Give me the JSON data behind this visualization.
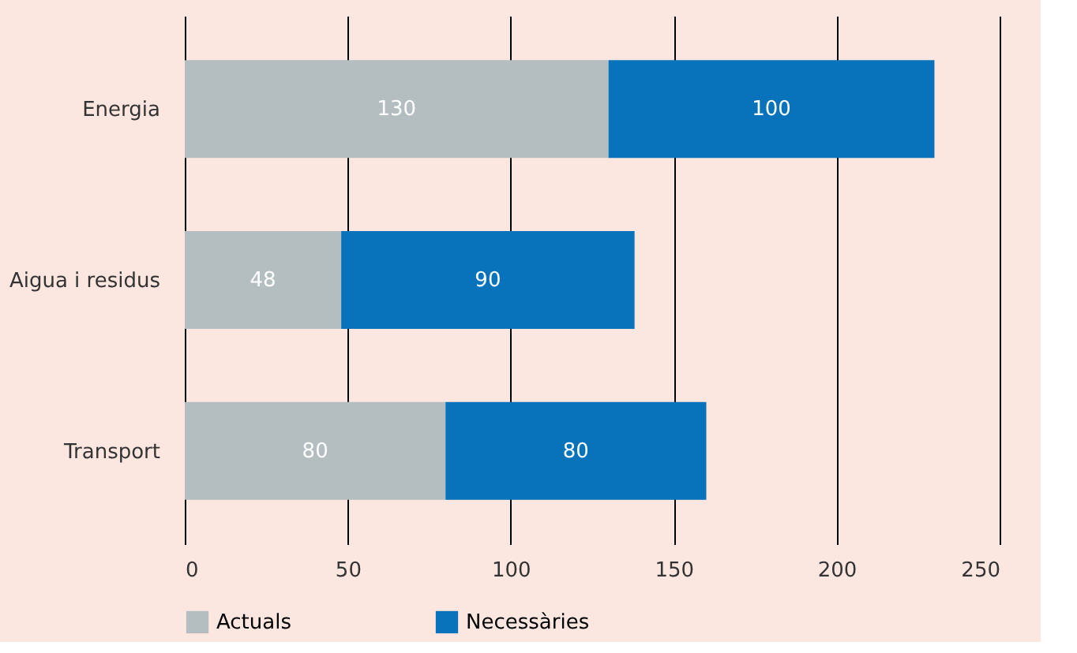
{
  "chart_data": {
    "type": "bar",
    "orientation": "horizontal",
    "stacked": true,
    "categories": [
      "Energia",
      "Aigua i residus",
      "Transport"
    ],
    "series": [
      {
        "name": "Actuals",
        "color": "#b4bec1",
        "values": [
          130,
          48,
          80
        ]
      },
      {
        "name": "Necessàries",
        "color": "#0873bb",
        "values": [
          100,
          90,
          80
        ]
      }
    ],
    "xlim": [
      0,
      250
    ],
    "xticks": [
      0,
      50,
      100,
      150,
      200,
      250
    ],
    "grid": "x",
    "legend": "bottom",
    "data_labels": true
  }
}
